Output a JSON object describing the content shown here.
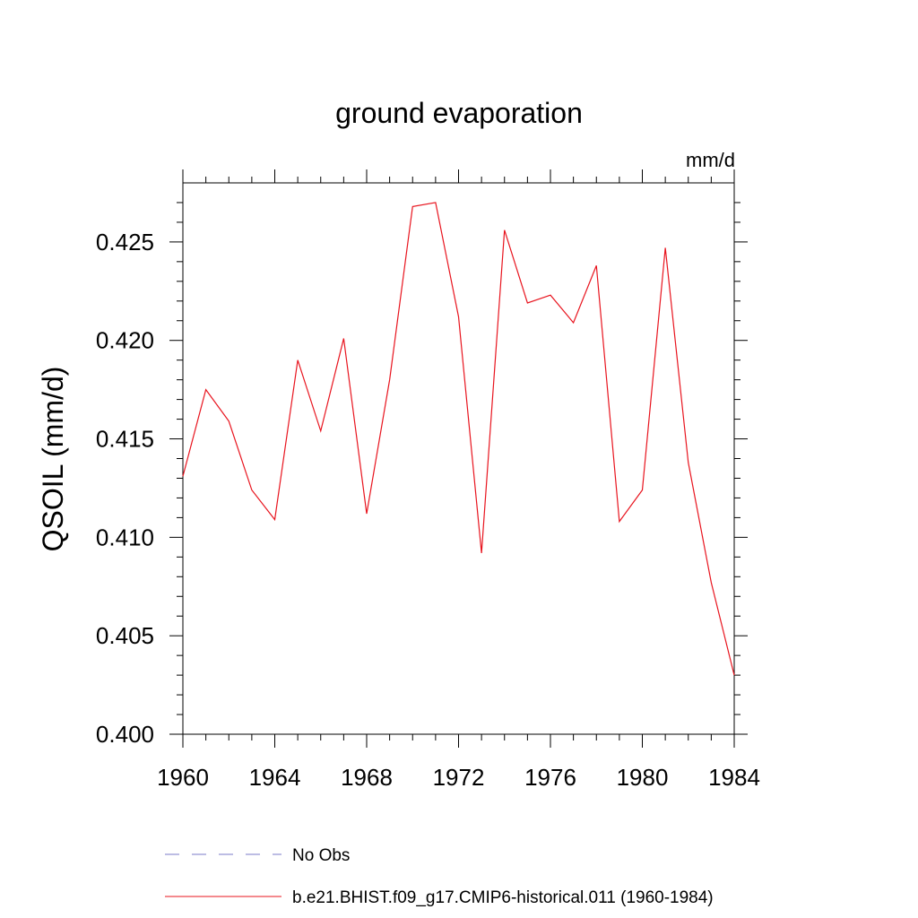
{
  "chart_data": {
    "type": "line",
    "title": "ground evaporation",
    "units_label": "mm/d",
    "ylabel": "QSOIL  (mm/d)",
    "xlabel": "",
    "xlim": [
      1960,
      1984
    ],
    "ylim": [
      0.4,
      0.428
    ],
    "xticks": [
      1960,
      1964,
      1968,
      1972,
      1976,
      1980,
      1984
    ],
    "xtick_labels": [
      "1960",
      "1964",
      "1968",
      "1972",
      "1976",
      "1980",
      "1984"
    ],
    "yticks": [
      0.4,
      0.405,
      0.41,
      0.415,
      0.42,
      0.425
    ],
    "ytick_labels": [
      "0.400",
      "0.405",
      "0.410",
      "0.415",
      "0.420",
      "0.425"
    ],
    "grid": false,
    "legend_position": "bottom",
    "series": [
      {
        "name": "No Obs",
        "color": "#7b7bc8",
        "dash": true,
        "x": [],
        "y": []
      },
      {
        "name": "b.e21.BHIST.f09_g17.CMIP6-historical.011 (1960-1984)",
        "color": "#e8141e",
        "dash": false,
        "x": [
          1960,
          1961,
          1962,
          1963,
          1964,
          1965,
          1966,
          1967,
          1968,
          1969,
          1970,
          1971,
          1972,
          1973,
          1974,
          1975,
          1976,
          1977,
          1978,
          1979,
          1980,
          1981,
          1982,
          1983,
          1984
        ],
        "y": [
          0.4131,
          0.4175,
          0.4159,
          0.4124,
          0.4109,
          0.419,
          0.4154,
          0.4201,
          0.4112,
          0.418,
          0.4268,
          0.427,
          0.4212,
          0.4092,
          0.4256,
          0.4219,
          0.4223,
          0.4209,
          0.4238,
          0.4108,
          0.4124,
          0.4247,
          0.4138,
          0.4077,
          0.403
        ]
      }
    ]
  }
}
